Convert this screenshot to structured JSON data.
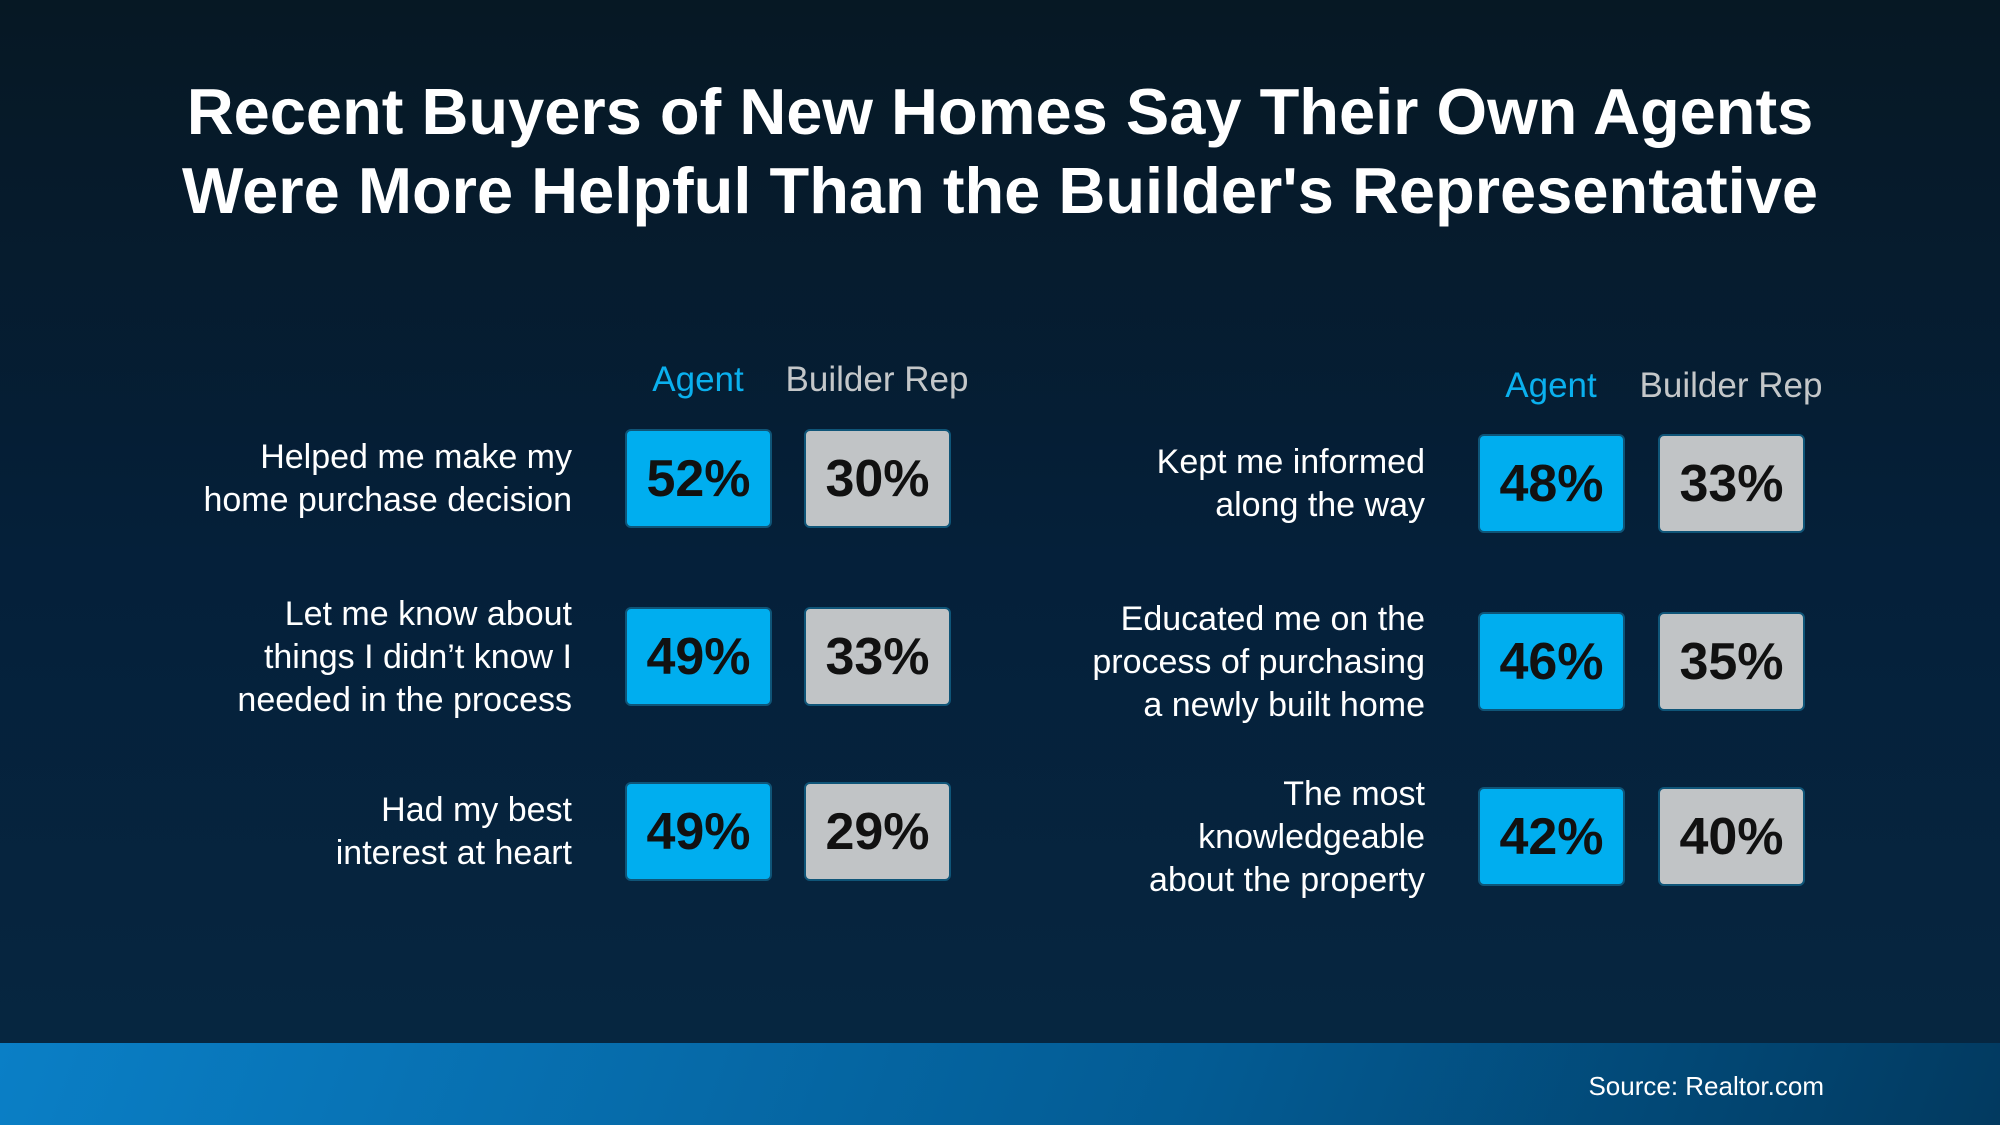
{
  "title_line1": "Recent Buyers of New Homes Say Their Own Agents",
  "title_line2": "Were More Helpful Than the Builder's Representative",
  "chart_data": {
    "type": "table",
    "title": "Recent Buyers of New Homes Say Their Own Agents Were More Helpful Than the Builder's Representative",
    "columns": [
      "Agent",
      "Builder Rep"
    ],
    "colors": {
      "Agent": "#00aeef",
      "Builder Rep": "#c1c4c6"
    },
    "panels": [
      {
        "header_agent": "Agent",
        "header_builder": "Builder Rep",
        "rows": [
          {
            "label": [
              "Helped me make my",
              "home purchase decision"
            ],
            "agent": "52%",
            "builder": "30%"
          },
          {
            "label": [
              "Let me know about",
              "things I didn’t know I",
              "needed in the process"
            ],
            "agent": "49%",
            "builder": "33%"
          },
          {
            "label": [
              "Had my best",
              "interest at heart"
            ],
            "agent": "49%",
            "builder": "29%"
          }
        ]
      },
      {
        "header_agent": "Agent",
        "header_builder": "Builder Rep",
        "rows": [
          {
            "label": [
              "Kept me informed",
              "along the way"
            ],
            "agent": "48%",
            "builder": "33%"
          },
          {
            "label": [
              "Educated me on the",
              "process of purchasing",
              "a newly built home"
            ],
            "agent": "46%",
            "builder": "35%"
          },
          {
            "label": [
              "The most",
              "knowledgeable",
              "about the property"
            ],
            "agent": "42%",
            "builder": "40%"
          }
        ]
      }
    ]
  },
  "source": "Source: Realtor.com"
}
